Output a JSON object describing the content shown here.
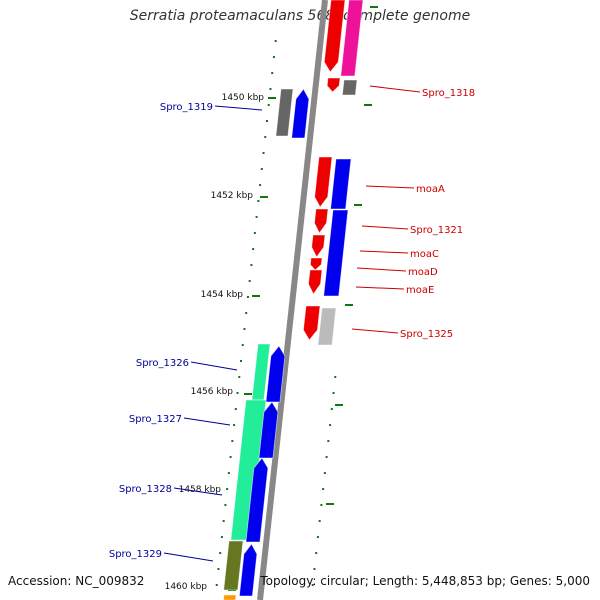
{
  "title": "Serratia proteamaculans 568, complete genome",
  "footer": {
    "accession_label": "Accession:",
    "accession": "NC_009832",
    "topology_label": "Topology:",
    "topology": "circular",
    "length_label": "Length:",
    "length": "5,448,853 bp",
    "genes_label": "Genes:",
    "genes": "5,000"
  },
  "ticks": [
    "1450 kbp",
    "1452 kbp",
    "1454 kbp",
    "1456 kbp",
    "1458 kbp",
    "1460 kbp"
  ],
  "genes_forward": [
    "Spro_1318",
    "moaA",
    "Spro_1321",
    "moaC",
    "moaD",
    "moaE",
    "Spro_1325"
  ],
  "genes_reverse": [
    "Spro_1319",
    "Spro_1326",
    "Spro_1327",
    "Spro_1328",
    "Spro_1329"
  ],
  "colors": {
    "forward_label": "#cc0000",
    "reverse_label": "#000099",
    "backbone": "#888888",
    "gene_red": "#ee0000",
    "gene_blue": "#0000ee",
    "gene_green": "#22ee99",
    "gene_olive": "#667722",
    "gene_pink": "#ee1199",
    "gene_gray": "#666666",
    "gene_lightgray": "#bbbbbb",
    "gene_orange": "#ff9900",
    "dots": "#117711"
  }
}
